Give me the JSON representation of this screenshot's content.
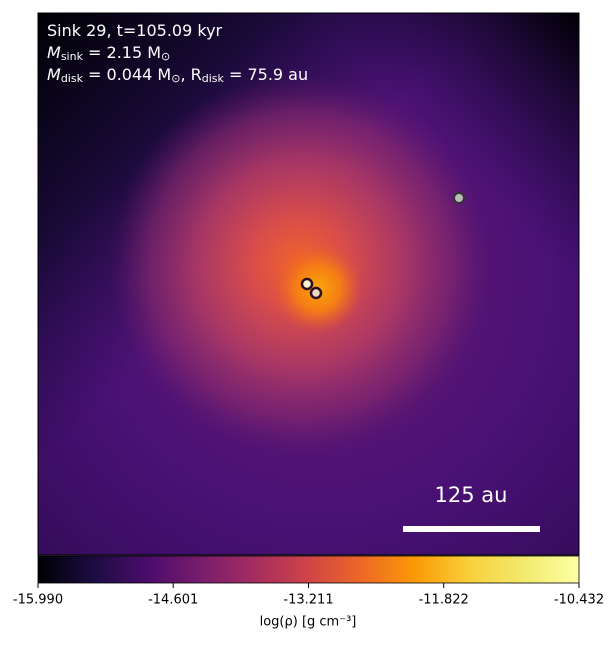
{
  "chart_data": {
    "type": "heatmap",
    "annotation_lines": [
      [
        {
          "t": "Sink 29, t=105.09 kyr"
        }
      ],
      [
        {
          "t": "M"
        },
        {
          "sub": "sink"
        },
        {
          "t": " = 2.15 M"
        },
        {
          "sub": "⊙"
        }
      ],
      [
        {
          "t": "M"
        },
        {
          "sub": "disk"
        },
        {
          "t": " = 0.044 M"
        },
        {
          "sub": "⊙"
        },
        {
          "t": ", R"
        },
        {
          "sub": "disk"
        },
        {
          "t": " = 75.9 au"
        }
      ]
    ],
    "scale_bar_label": "125 au",
    "colorbar": {
      "label": "log(ρ) [g cm⁻³]",
      "clim": [
        -15.99,
        -10.432
      ],
      "ticks": [
        {
          "value": -15.99,
          "label": "-15.990"
        },
        -14.601,
        -13.211,
        -11.822,
        -10.432
      ]
    }
  }
}
